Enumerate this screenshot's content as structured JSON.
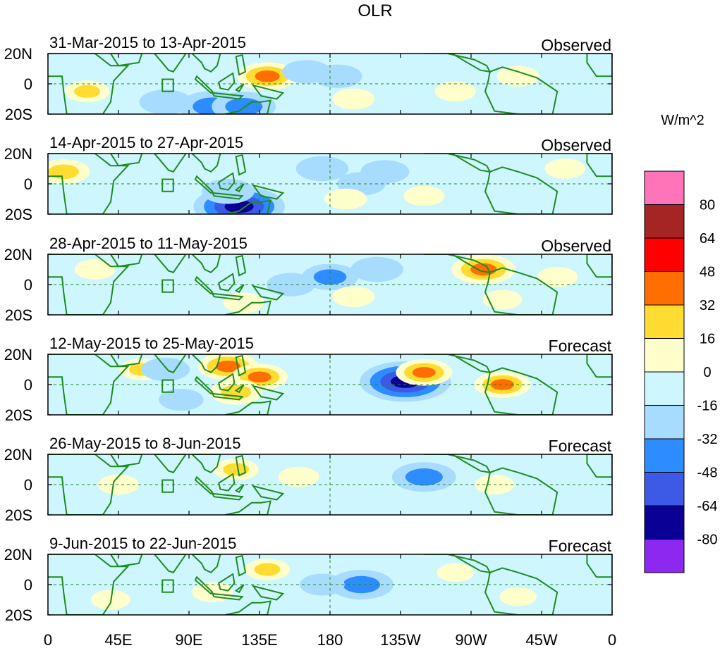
{
  "chart_data": {
    "type": "heatmap",
    "title": "OLR",
    "units_label": "W/m^2",
    "x_tick_labels": [
      "0",
      "45E",
      "90E",
      "135E",
      "180",
      "135W",
      "90W",
      "45W",
      "0"
    ],
    "x_ticks_lon": [
      0,
      45,
      90,
      135,
      180,
      225,
      270,
      315,
      360
    ],
    "xlim": [
      0,
      360
    ],
    "y_tick_labels": [
      "20N",
      "0",
      "20S"
    ],
    "y_ticks_lat": [
      20,
      0,
      -20
    ],
    "ylim": [
      -20,
      20
    ],
    "colorbar": {
      "levels": [
        -80,
        -64,
        -48,
        -32,
        -16,
        0,
        16,
        32,
        48,
        64,
        80
      ],
      "tick_labels": [
        "80",
        "64",
        "48",
        "32",
        "16",
        "0",
        "-16",
        "-32",
        "-48",
        "-64",
        "-80"
      ],
      "colors_top_to_bottom": [
        "#ff73b9",
        "#a52424",
        "#ff0000",
        "#ff6e00",
        "#ffdc32",
        "#ffffcc",
        "#cef6ff",
        "#a8dcff",
        "#2d8cff",
        "#3c5ae6",
        "#0a0096",
        "#8c28f0"
      ]
    },
    "panels": [
      {
        "period": "31-Mar-2015 to 13-Apr-2015",
        "kind": "Observed",
        "anomalies": [
          {
            "lon": 140,
            "lat": 5,
            "value": 45
          },
          {
            "lon": 105,
            "lat": -15,
            "value": -55
          },
          {
            "lon": 125,
            "lat": -15,
            "value": -50
          },
          {
            "lon": 75,
            "lat": -12,
            "value": -35
          },
          {
            "lon": 25,
            "lat": -5,
            "value": 25
          },
          {
            "lon": 165,
            "lat": 8,
            "value": -30
          },
          {
            "lon": 185,
            "lat": 5,
            "value": -30
          },
          {
            "lon": 195,
            "lat": -10,
            "value": 22
          },
          {
            "lon": 260,
            "lat": -5,
            "value": 20
          },
          {
            "lon": 300,
            "lat": 5,
            "value": 22
          },
          {
            "lon": 215,
            "lat": 12,
            "value": -20
          }
        ]
      },
      {
        "period": "14-Apr-2015 to 27-Apr-2015",
        "kind": "Observed",
        "anomalies": [
          {
            "lon": 122,
            "lat": -15,
            "value": -85
          },
          {
            "lon": 115,
            "lat": -5,
            "value": -35
          },
          {
            "lon": 10,
            "lat": 8,
            "value": 35
          },
          {
            "lon": 175,
            "lat": 10,
            "value": -35
          },
          {
            "lon": 200,
            "lat": 0,
            "value": -30
          },
          {
            "lon": 215,
            "lat": 8,
            "value": -30
          },
          {
            "lon": 190,
            "lat": -10,
            "value": 22
          },
          {
            "lon": 240,
            "lat": -8,
            "value": 20
          },
          {
            "lon": 280,
            "lat": -12,
            "value": -20
          },
          {
            "lon": 330,
            "lat": 10,
            "value": 20
          }
        ]
      },
      {
        "period": "28-Apr-2015 to 11-May-2015",
        "kind": "Observed",
        "anomalies": [
          {
            "lon": 180,
            "lat": 5,
            "value": -40
          },
          {
            "lon": 210,
            "lat": 10,
            "value": -35
          },
          {
            "lon": 155,
            "lat": 0,
            "value": -30
          },
          {
            "lon": 278,
            "lat": 10,
            "value": 50
          },
          {
            "lon": 30,
            "lat": 10,
            "value": 20
          },
          {
            "lon": 195,
            "lat": -8,
            "value": 22
          },
          {
            "lon": 125,
            "lat": -12,
            "value": 20
          },
          {
            "lon": 290,
            "lat": -10,
            "value": 18
          },
          {
            "lon": 325,
            "lat": 5,
            "value": 20
          }
        ]
      },
      {
        "period": "12-May-2015 to 25-May-2015",
        "kind": "Forecast",
        "anomalies": [
          {
            "lon": 228,
            "lat": 2,
            "value": -85
          },
          {
            "lon": 115,
            "lat": 12,
            "value": 45
          },
          {
            "lon": 135,
            "lat": 5,
            "value": 40
          },
          {
            "lon": 120,
            "lat": -5,
            "value": 35
          },
          {
            "lon": 240,
            "lat": 8,
            "value": 40
          },
          {
            "lon": 290,
            "lat": 0,
            "value": 40
          },
          {
            "lon": 60,
            "lat": 10,
            "value": 25
          },
          {
            "lon": 190,
            "lat": -5,
            "value": -20
          },
          {
            "lon": 75,
            "lat": 10,
            "value": -30
          },
          {
            "lon": 85,
            "lat": -10,
            "value": -25
          }
        ]
      },
      {
        "period": "26-May-2015 to 8-Jun-2015",
        "kind": "Forecast",
        "anomalies": [
          {
            "lon": 240,
            "lat": 5,
            "value": -50
          },
          {
            "lon": 120,
            "lat": 10,
            "value": 25
          },
          {
            "lon": 160,
            "lat": 5,
            "value": 20
          },
          {
            "lon": 45,
            "lat": 0,
            "value": 20
          },
          {
            "lon": 200,
            "lat": -5,
            "value": -20
          },
          {
            "lon": 70,
            "lat": -10,
            "value": -18
          },
          {
            "lon": 285,
            "lat": 0,
            "value": 18
          }
        ]
      },
      {
        "period": "9-Jun-2015 to 22-Jun-2015",
        "kind": "Forecast",
        "anomalies": [
          {
            "lon": 200,
            "lat": 0,
            "value": -50
          },
          {
            "lon": 175,
            "lat": 0,
            "value": -25
          },
          {
            "lon": 140,
            "lat": 10,
            "value": 25
          },
          {
            "lon": 105,
            "lat": -5,
            "value": 20
          },
          {
            "lon": 40,
            "lat": -10,
            "value": 18
          },
          {
            "lon": 260,
            "lat": 8,
            "value": 15
          },
          {
            "lon": 300,
            "lat": -8,
            "value": 15
          }
        ]
      }
    ]
  }
}
